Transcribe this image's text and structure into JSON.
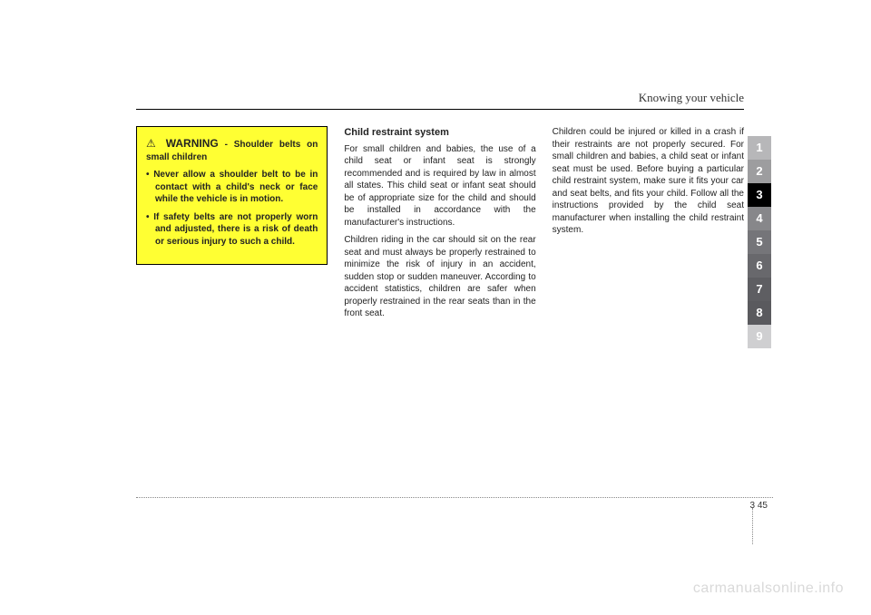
{
  "header": {
    "section_title": "Knowing your vehicle"
  },
  "warning": {
    "icon": "⚠",
    "label": "WARNING",
    "subtitle": "- Shoulder belts on small children",
    "items": [
      "Never allow a shoulder belt to be in contact with a child's neck or face while the vehicle is in motion.",
      "If safety belts are not properly worn and adjusted, there is a risk of death or serious injury to such a child."
    ]
  },
  "col2": {
    "heading": "Child restraint system",
    "p1": "For small children and babies, the use of a child seat or infant seat is strongly recommended and is required by law in almost all states. This child seat or infant seat should be of appropriate size for the child and should be installed in accordance with the manufacturer's instructions.",
    "p2": "Children riding in the car should sit on the rear seat and must always be properly restrained to minimize the risk of injury in an accident, sudden stop or sudden maneuver. According to accident statistics, children are safer when properly restrained in the rear seats than in the front seat."
  },
  "col3": {
    "p1": "Children could be injured or killed in a crash if their restraints are not properly secured. For small children and babies, a child seat or infant seat must be used. Before buying a particular child restraint system, make sure it fits your car and seat belts, and fits your child. Follow all the instructions provided by the child seat manufacturer when installing the child restraint system."
  },
  "tabs": {
    "items": [
      "1",
      "2",
      "3",
      "4",
      "5",
      "6",
      "7",
      "8",
      "9"
    ],
    "active_index": 2,
    "colors": [
      "#b7b7b9",
      "#9d9d9f",
      "#000000",
      "#87878a",
      "#757579",
      "#68686c",
      "#5e5e62",
      "#5a5a5e",
      "#cfcfd1"
    ],
    "active_color": "#000000"
  },
  "footer": {
    "page_section": "3",
    "page_number": "45"
  },
  "watermark": "carmanualsonline.info"
}
